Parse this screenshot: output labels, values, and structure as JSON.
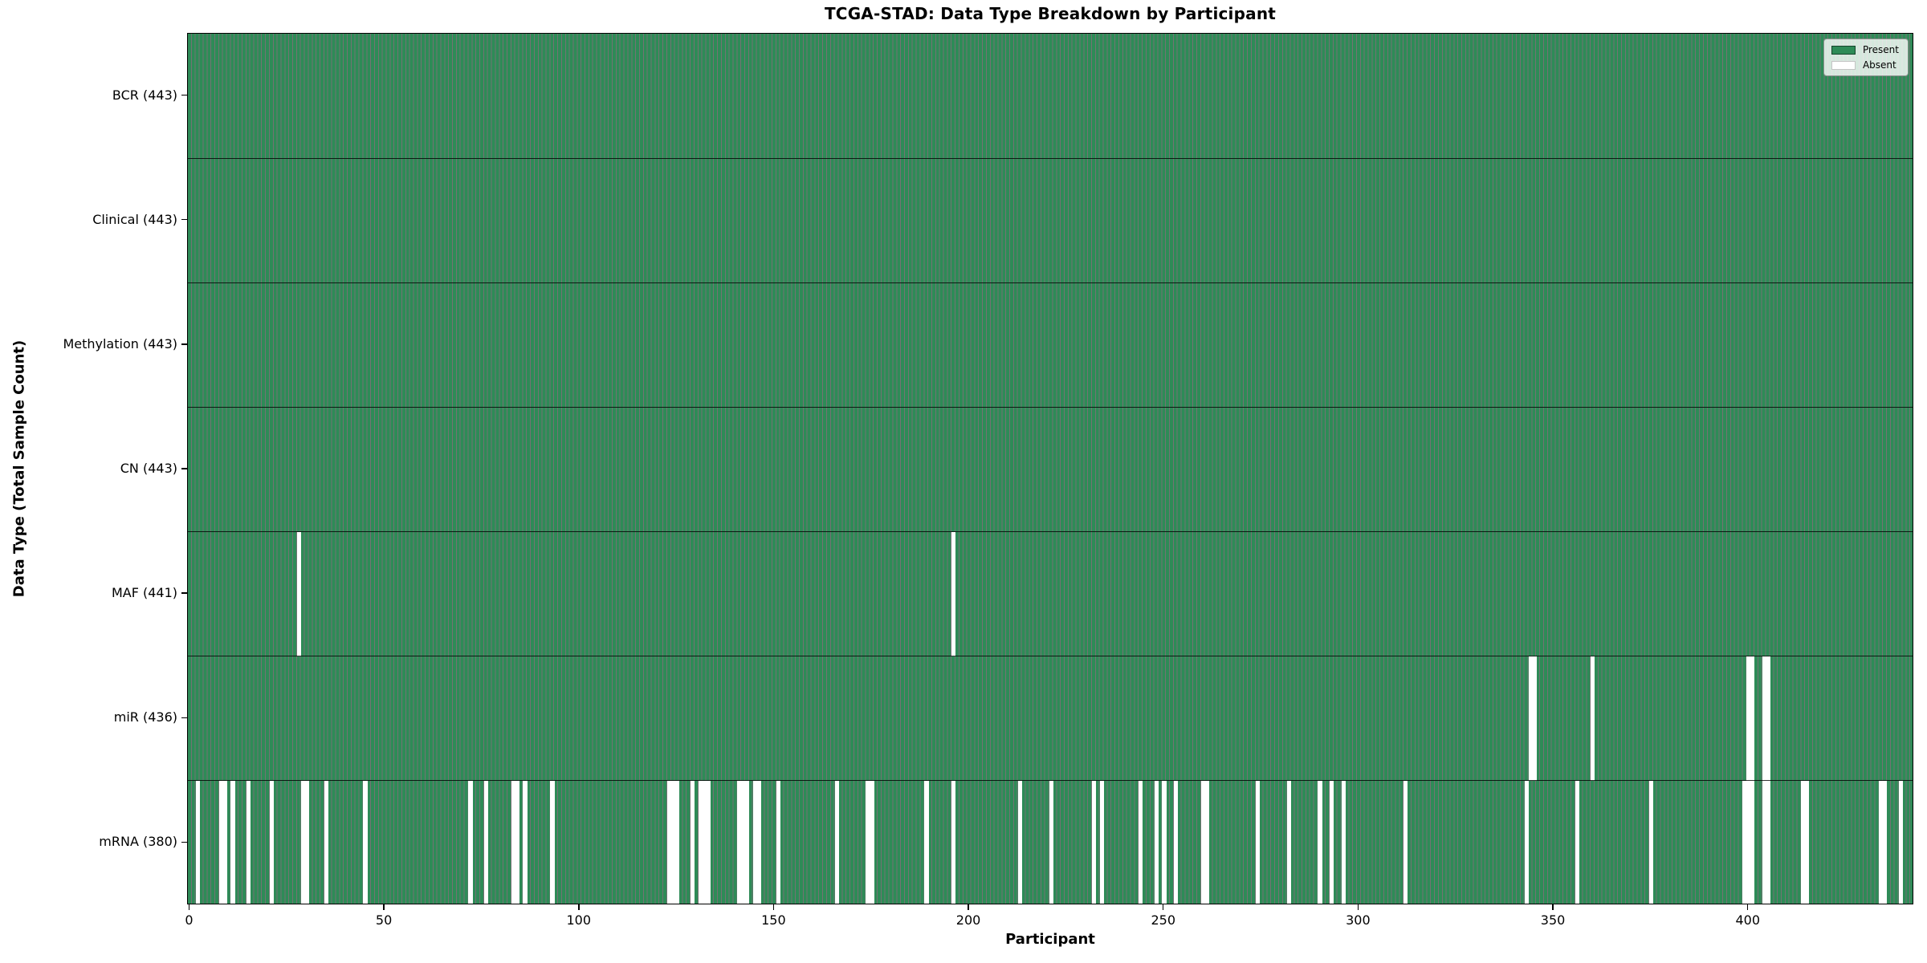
{
  "chart_data": {
    "type": "heatmap",
    "title": "TCGA-STAD: Data Type Breakdown by Participant",
    "xlabel": "Participant",
    "ylabel": "Data Type (Total Sample Count)",
    "n_participants": 443,
    "x_ticks": [
      0,
      50,
      100,
      150,
      200,
      250,
      300,
      350,
      400
    ],
    "legend_position": "upper right",
    "grid": false,
    "legend_entries": [
      {
        "label": "Present",
        "color": "#2e8b57"
      },
      {
        "label": "Absent",
        "color": "#ffffff"
      }
    ],
    "colors": {
      "present_fill": "#2e8b57",
      "absent_fill": "#ffffff",
      "bar_edge": "rgba(0,0,0,0.55)",
      "row_divider": "rgba(0,0,0,0.8)",
      "spine": "#000000"
    },
    "rows": [
      {
        "label": "BCR (443)",
        "name": "BCR",
        "total_present": 443,
        "absent_participants": []
      },
      {
        "label": "Clinical (443)",
        "name": "Clinical",
        "total_present": 443,
        "absent_participants": []
      },
      {
        "label": "Methylation (443)",
        "name": "Methylation",
        "total_present": 443,
        "absent_participants": []
      },
      {
        "label": "CN (443)",
        "name": "CN",
        "total_present": 443,
        "absent_participants": []
      },
      {
        "label": "MAF (441)",
        "name": "MAF",
        "total_present": 441,
        "absent_participants": [
          28,
          196
        ]
      },
      {
        "label": "miR (436)",
        "name": "miR",
        "total_present": 436,
        "absent_participants": [
          344,
          345,
          360,
          400,
          401,
          404,
          405
        ]
      },
      {
        "label": "mRNA (380)",
        "name": "mRNA",
        "total_present": 380,
        "absent_participants": [
          2,
          8,
          9,
          11,
          15,
          21,
          29,
          30,
          35,
          45,
          72,
          76,
          83,
          84,
          86,
          93,
          123,
          124,
          125,
          129,
          131,
          132,
          133,
          141,
          142,
          143,
          145,
          146,
          151,
          166,
          174,
          175,
          189,
          196,
          213,
          221,
          232,
          234,
          244,
          248,
          250,
          253,
          260,
          261,
          274,
          282,
          290,
          293,
          296,
          312,
          343,
          356,
          375,
          399,
          400,
          401,
          404,
          405,
          414,
          415,
          434,
          435,
          439
        ]
      }
    ]
  }
}
